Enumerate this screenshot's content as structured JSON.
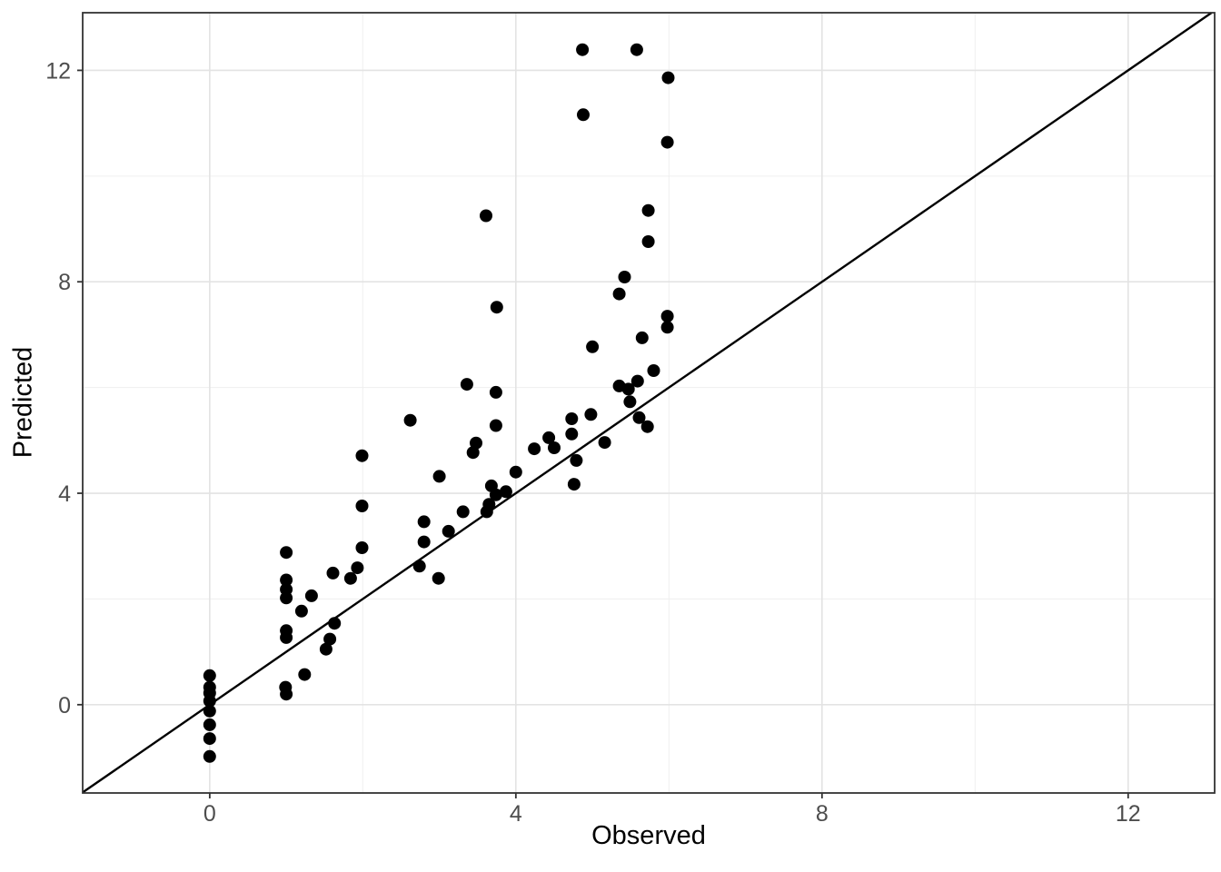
{
  "figure": {
    "background": "#ffffff"
  },
  "style": {
    "major_grid_color": "#e3e3e3",
    "minor_grid_color": "#efefef",
    "panel_border_color": "#333333",
    "tick_mark_color": "#333333",
    "tick_label_color": "#4d4d4d",
    "axis_title_color": "#000000",
    "point_color": "#000000",
    "line_color": "#000000"
  },
  "chart_data": {
    "type": "scatter",
    "title": "",
    "xlabel": "Observed",
    "ylabel": "Predicted",
    "x_ticks": [
      0,
      4,
      8,
      12
    ],
    "y_ticks": [
      0,
      4,
      8,
      12
    ],
    "x_minor_ticks": [
      2,
      6,
      10
    ],
    "y_minor_ticks": [
      2,
      6,
      10
    ],
    "xlim": [
      -1.66,
      13.13
    ],
    "ylim": [
      -1.67,
      13.09
    ],
    "grid": "major+minor",
    "legend_position": "none",
    "identity_line": {
      "slope": 1,
      "intercept": 0
    },
    "points": [
      [
        0,
        0.55
      ],
      [
        0,
        0.33
      ],
      [
        0,
        0.22
      ],
      [
        0,
        0.07
      ],
      [
        0,
        -0.12
      ],
      [
        0,
        -0.38
      ],
      [
        0,
        -0.64
      ],
      [
        0,
        -0.98
      ],
      [
        1,
        2.88
      ],
      [
        1,
        2.36
      ],
      [
        1,
        2.18
      ],
      [
        1,
        2.02
      ],
      [
        1,
        1.4
      ],
      [
        1,
        1.27
      ],
      [
        0.99,
        0.33
      ],
      [
        1,
        0.2
      ],
      [
        1.33,
        2.06
      ],
      [
        1.2,
        1.77
      ],
      [
        1.24,
        0.57
      ],
      [
        1.61,
        2.49
      ],
      [
        1.84,
        2.39
      ],
      [
        1.93,
        2.59
      ],
      [
        1.63,
        1.54
      ],
      [
        1.57,
        1.24
      ],
      [
        1.52,
        1.05
      ],
      [
        1.99,
        2.97
      ],
      [
        1.99,
        3.76
      ],
      [
        1.99,
        4.71
      ],
      [
        2.62,
        5.38
      ],
      [
        2.8,
        3.46
      ],
      [
        2.8,
        3.08
      ],
      [
        2.74,
        2.62
      ],
      [
        2.99,
        2.39
      ],
      [
        3.12,
        3.28
      ],
      [
        3.31,
        3.65
      ],
      [
        3.0,
        4.32
      ],
      [
        3.36,
        6.06
      ],
      [
        3.61,
        9.25
      ],
      [
        3.74,
        5.91
      ],
      [
        3.74,
        5.28
      ],
      [
        3.48,
        4.95
      ],
      [
        3.44,
        4.77
      ],
      [
        3.68,
        4.14
      ],
      [
        3.74,
        3.97
      ],
      [
        3.87,
        4.03
      ],
      [
        3.65,
        3.79
      ],
      [
        3.62,
        3.65
      ],
      [
        3.75,
        7.52
      ],
      [
        4.0,
        4.4
      ],
      [
        4.24,
        4.84
      ],
      [
        4.43,
        5.05
      ],
      [
        4.5,
        4.86
      ],
      [
        4.73,
        5.12
      ],
      [
        4.79,
        4.62
      ],
      [
        4.76,
        4.17
      ],
      [
        4.73,
        5.41
      ],
      [
        4.98,
        5.49
      ],
      [
        5.0,
        6.77
      ],
      [
        4.87,
        12.39
      ],
      [
        4.88,
        11.16
      ],
      [
        5.16,
        4.96
      ],
      [
        5.35,
        6.03
      ],
      [
        5.47,
        5.97
      ],
      [
        5.49,
        5.73
      ],
      [
        5.59,
        6.12
      ],
      [
        5.61,
        5.43
      ],
      [
        5.72,
        5.26
      ],
      [
        5.8,
        6.32
      ],
      [
        5.65,
        6.94
      ],
      [
        5.98,
        7.35
      ],
      [
        5.98,
        7.14
      ],
      [
        5.35,
        7.77
      ],
      [
        5.42,
        8.09
      ],
      [
        5.73,
        8.76
      ],
      [
        5.73,
        9.35
      ],
      [
        5.58,
        12.39
      ],
      [
        5.99,
        11.86
      ],
      [
        5.98,
        10.64
      ]
    ]
  }
}
